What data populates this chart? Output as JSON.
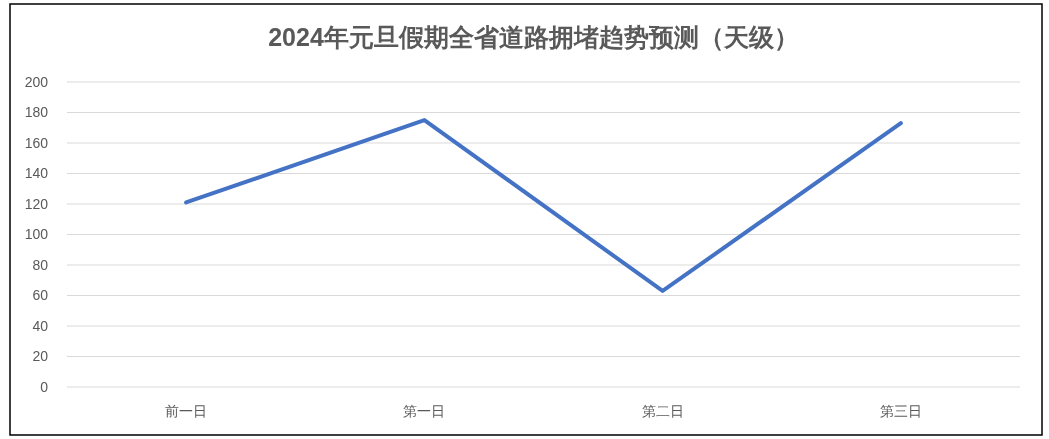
{
  "chart_data": {
    "type": "line",
    "title": "2024年元旦假期全省道路拥堵趋势预测（天级）",
    "categories": [
      "前一日",
      "第一日",
      "第二日",
      "第三日"
    ],
    "series": [
      {
        "color": "#4472c4",
        "values": [
          121,
          175,
          63,
          173
        ]
      }
    ],
    "ylim": [
      0,
      200
    ],
    "yticks": [
      0,
      20,
      40,
      60,
      80,
      100,
      120,
      140,
      160,
      180,
      200
    ],
    "grid": "y",
    "marker": "none",
    "line_style": "solid"
  }
}
